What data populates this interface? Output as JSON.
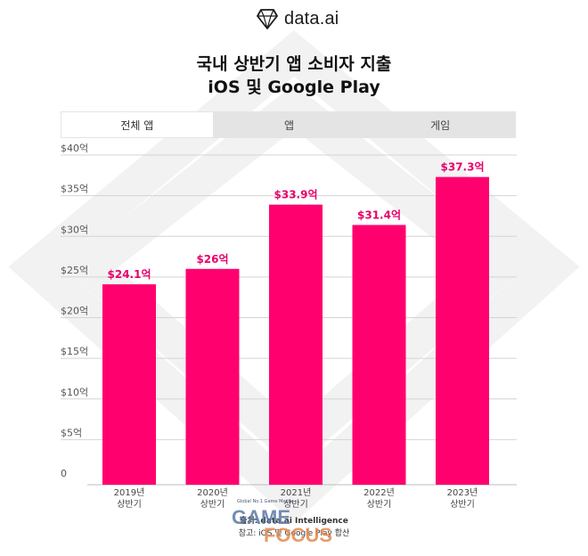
{
  "brand": {
    "name": "data.ai",
    "icon": "diamond-logo-icon"
  },
  "title": {
    "line1": "국내 상반기 앱 소비자 지출",
    "line2": "iOS 및 Google Play"
  },
  "tabs": [
    {
      "label": "전체 앱",
      "active": true
    },
    {
      "label": "앱",
      "active": false
    },
    {
      "label": "게임",
      "active": false
    }
  ],
  "chart_data": {
    "type": "bar",
    "categories": [
      "2019년 상반기",
      "2020년 상반기",
      "2021년 상반기",
      "2022년 상반기",
      "2023년 상반기"
    ],
    "category_lines": [
      [
        "2019년",
        "상반기"
      ],
      [
        "2020년",
        "상반기"
      ],
      [
        "2021년",
        "상반기"
      ],
      [
        "2022년",
        "상반기"
      ],
      [
        "2023년",
        "상반기"
      ]
    ],
    "values": [
      24.1,
      26,
      33.9,
      31.4,
      37.3
    ],
    "data_labels": [
      "$24.1억",
      "$26억",
      "$33.9억",
      "$31.4억",
      "$37.3억"
    ],
    "ylim": [
      0,
      40
    ],
    "yticks": [
      0,
      5,
      10,
      15,
      20,
      25,
      30,
      35,
      40
    ],
    "ytick_labels": [
      "0",
      "$5억",
      "$10억",
      "$15억",
      "$20억",
      "$25억",
      "$30억",
      "$35억",
      "$40억"
    ],
    "grid": true,
    "colors": {
      "bar": "#ff006e",
      "label": "#e8006a",
      "grid": "#d4d4d4",
      "axis": "#555555"
    }
  },
  "footer": {
    "source": "출처: data.ai Intelligence",
    "note": "참고: iOS 및 Google Play 합산"
  },
  "stamp": {
    "tagline": "Global No.1 Game Media",
    "word1": "GAME",
    "word2": "FOCUS"
  }
}
